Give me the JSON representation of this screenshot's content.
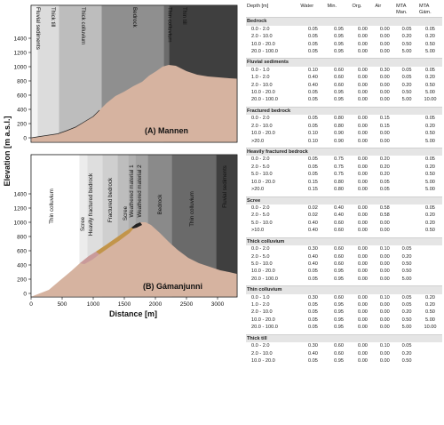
{
  "figure": {
    "y_axis_title": "Elevation [m a.s.l.]",
    "x_axis_title": "Distance [m]",
    "panel_a": {
      "title": "(A) Mannen",
      "y_ticks": [
        "0",
        "200",
        "400",
        "600",
        "800",
        "1000",
        "1200",
        "1400"
      ],
      "zones": [
        "Fluvial sediments",
        "Thick till",
        "Thick colluvium",
        "Bedrock",
        "Thin colluvium",
        "Thin till"
      ]
    },
    "panel_b": {
      "title": "(B) Gámanjunni",
      "y_ticks": [
        "0",
        "200",
        "400",
        "600",
        "800",
        "1000",
        "1200",
        "1400"
      ],
      "x_ticks": [
        "0",
        "500",
        "1000",
        "1500",
        "2000",
        "2500",
        "3000"
      ],
      "zones": [
        "Thin colluvium",
        "Scree",
        "Heavily fractured bedrock",
        "Fractured bedrock",
        "Scree",
        "Weathered material 1",
        "Weathered material 2",
        "Bedrock",
        "Thin colluvium",
        "Fluvial sediments"
      ]
    },
    "colors": {
      "terrain": "#d6b3a0",
      "weathered": "#c2954a",
      "scree_patch": "#c99a9a",
      "dark_band": "#4a4a4a",
      "mid_band": "#7a7a7a",
      "light_band": "#c8c8c8",
      "lightest_band": "#e8e8e8"
    }
  },
  "table": {
    "headers": [
      "Depth [m]",
      "Water",
      "Min.",
      "Org.",
      "Air",
      "MTA Man.",
      "MTA Gám."
    ],
    "sections": [
      {
        "name": "Bedrock",
        "rows": [
          [
            "0.0 - 2.0",
            "0.05",
            "0.95",
            "0.00",
            "0.00",
            "0.05",
            "0.05"
          ],
          [
            "2.0 - 10.0",
            "0.05",
            "0.95",
            "0.00",
            "0.00",
            "0.20",
            "0.20"
          ],
          [
            "10.0 - 20.0",
            "0.05",
            "0.95",
            "0.00",
            "0.00",
            "0.50",
            "0.50"
          ],
          [
            "20.0 - 100.0",
            "0.05",
            "0.95",
            "0.00",
            "0.00",
            "5.00",
            "5.00"
          ]
        ]
      },
      {
        "name": "Fluvial sediments",
        "rows": [
          [
            "0.0 - 1.0",
            "0.10",
            "0.60",
            "0.00",
            "0.30",
            "0.05",
            "0.05"
          ],
          [
            "1.0 - 2.0",
            "0.40",
            "0.60",
            "0.00",
            "0.00",
            "0.05",
            "0.20"
          ],
          [
            "2.0 - 10.0",
            "0.40",
            "0.60",
            "0.00",
            "0.00",
            "0.20",
            "0.50"
          ],
          [
            "10.0 - 20.0",
            "0.05",
            "0.95",
            "0.00",
            "0.00",
            "0.50",
            "5.00"
          ],
          [
            "20.0 - 100.0",
            "0.05",
            "0.95",
            "0.00",
            "0.00",
            "5.00",
            "10.00"
          ]
        ]
      },
      {
        "name": "Fractured  bedrock",
        "rows": [
          [
            "0.0 - 2.0",
            "0.05",
            "0.80",
            "0.00",
            "0.15",
            "",
            "0.05"
          ],
          [
            "2.0 - 10.0",
            "0.05",
            "0.80",
            "0.00",
            "0.15",
            "",
            "0.20"
          ],
          [
            "10.0 - 20.0",
            "0.10",
            "0.90",
            "0.00",
            "0.00",
            "",
            "0.50"
          ],
          [
            ">20.0",
            "0.10",
            "0.90",
            "0.00",
            "0.00",
            "",
            "5.00"
          ]
        ]
      },
      {
        "name": "Heavily fractured  bedrock",
        "rows": [
          [
            "0.0 - 2.0",
            "0.05",
            "0.75",
            "0.00",
            "0.20",
            "",
            "0.05"
          ],
          [
            "2.0 - 5.0",
            "0.05",
            "0.75",
            "0.00",
            "0.20",
            "",
            "0.20"
          ],
          [
            "5.0 - 10.0",
            "0.05",
            "0.75",
            "0.00",
            "0.20",
            "",
            "0.50"
          ],
          [
            "10.0 - 20.0",
            "0.15",
            "0.80",
            "0.00",
            "0.05",
            "",
            "5.00"
          ],
          [
            ">20.0",
            "0.15",
            "0.80",
            "0.00",
            "0.05",
            "",
            "5.00"
          ]
        ]
      },
      {
        "name": "Scree",
        "rows": [
          [
            "0.0 - 2.0",
            "0.02",
            "0.40",
            "0.00",
            "0.58",
            "",
            "0.05"
          ],
          [
            "2.0 - 5.0",
            "0.02",
            "0.40",
            "0.00",
            "0.58",
            "",
            "0.20"
          ],
          [
            "5.0 - 10.0",
            "0.40",
            "0.60",
            "0.00",
            "0.00",
            "",
            "0.20"
          ],
          [
            ">10.0",
            "0.40",
            "0.60",
            "0.00",
            "0.00",
            "",
            "0.50"
          ]
        ]
      },
      {
        "name": "Thick colluvium",
        "rows": [
          [
            "0.0 - 2.0",
            "0.30",
            "0.60",
            "0.00",
            "0.10",
            "0.05",
            ""
          ],
          [
            "2.0 - 5.0",
            "0.40",
            "0.60",
            "0.00",
            "0.00",
            "0.20",
            ""
          ],
          [
            "5.0 - 10.0",
            "0.40",
            "0.60",
            "0.00",
            "0.00",
            "0.50",
            ""
          ],
          [
            "10.0 - 20.0",
            "0.05",
            "0.95",
            "0.00",
            "0.00",
            "0.50",
            ""
          ],
          [
            "20.0 - 100.0",
            "0.05",
            "0.95",
            "0.00",
            "0.00",
            "5.00",
            ""
          ]
        ]
      },
      {
        "name": "Thin colluvium",
        "rows": [
          [
            "0.0 - 1.0",
            "0.30",
            "0.60",
            "0.00",
            "0.10",
            "0.05",
            "0.20"
          ],
          [
            "1.0 - 2.0",
            "0.05",
            "0.95",
            "0.00",
            "0.00",
            "0.05",
            "0.20"
          ],
          [
            "2.0 - 10.0",
            "0.05",
            "0.95",
            "0.00",
            "0.00",
            "0.20",
            "0.50"
          ],
          [
            "10.0 - 20.0",
            "0.05",
            "0.95",
            "0.00",
            "0.00",
            "0.50",
            "5.00"
          ],
          [
            "20.0 - 100.0",
            "0.05",
            "0.95",
            "0.00",
            "0.00",
            "5.00",
            "10.00"
          ]
        ]
      },
      {
        "name": "Thick till",
        "rows": [
          [
            "0.0 - 2.0",
            "0.30",
            "0.60",
            "0.00",
            "0.10",
            "0.05",
            ""
          ],
          [
            "2.0 - 10.0",
            "0.40",
            "0.60",
            "0.00",
            "0.00",
            "0.20",
            ""
          ],
          [
            "10.0 - 20.0",
            "0.05",
            "0.95",
            "0.00",
            "0.00",
            "0.50",
            ""
          ]
        ]
      }
    ]
  }
}
